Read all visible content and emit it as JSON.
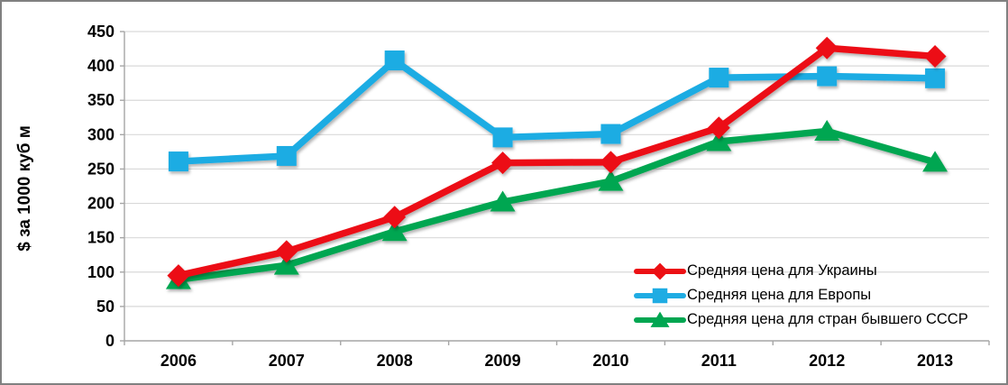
{
  "chart_data": {
    "type": "line",
    "title": "",
    "ylabel": "$ за 1000 куб м",
    "categories": [
      "2006",
      "2007",
      "2008",
      "2009",
      "2010",
      "2011",
      "2012",
      "2013"
    ],
    "y_ticks": [
      0,
      50,
      100,
      150,
      200,
      250,
      300,
      350,
      400,
      450
    ],
    "ylim": [
      0,
      450
    ],
    "grid": true,
    "legend_position": "inside-bottom-right",
    "series": [
      {
        "name": "Средняя цена для Украины",
        "color": "#EC1014",
        "marker": "diamond",
        "values": [
          95,
          130,
          180,
          259,
          260,
          310,
          426,
          414
        ]
      },
      {
        "name": "Средняя цена для Европы",
        "color": "#1FACE3",
        "marker": "square",
        "values": [
          261,
          269,
          408,
          296,
          301,
          383,
          385,
          382
        ]
      },
      {
        "name": "Средняя цена для стран бывшего СССР",
        "color": "#00A651",
        "marker": "triangle",
        "values": [
          89,
          110,
          159,
          202,
          232,
          290,
          305,
          260
        ]
      }
    ],
    "grid_color": "#D9D9D9",
    "axis_color": "#A6A6A6",
    "border_color": "#808080"
  }
}
